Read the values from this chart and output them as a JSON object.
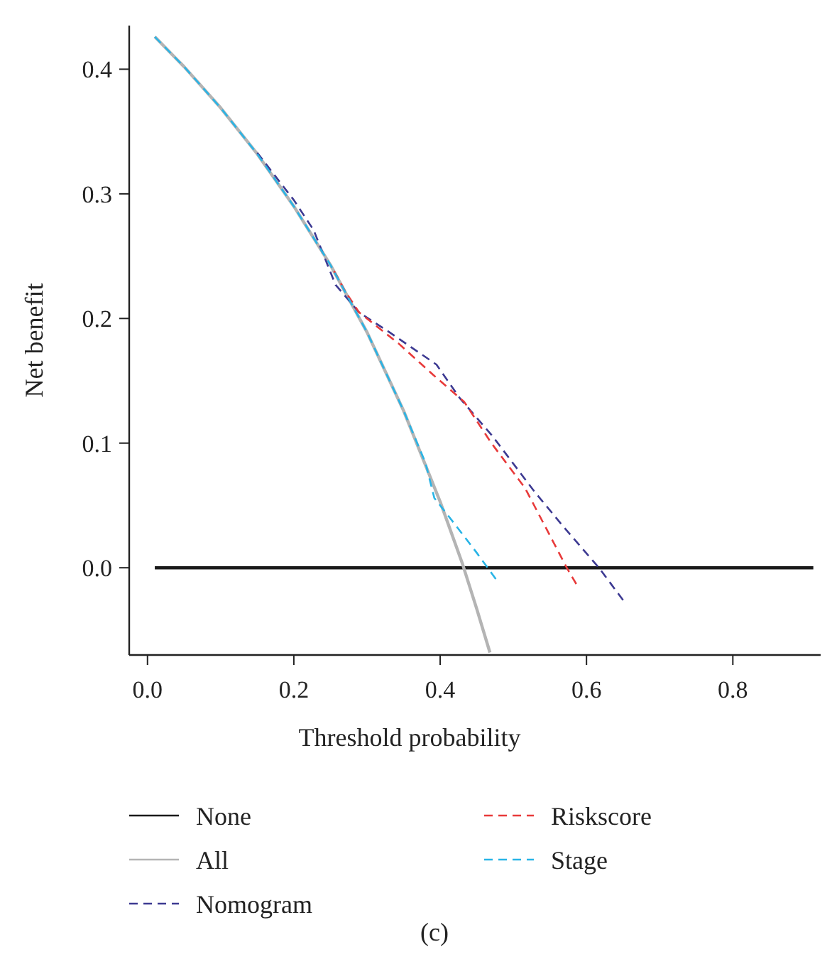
{
  "chart_data": {
    "type": "line",
    "xlabel": "Threshold probability",
    "ylabel": "Net benefit",
    "xlim": [
      -0.025,
      0.92
    ],
    "ylim": [
      -0.07,
      0.435
    ],
    "xticks": [
      {
        "value": 0,
        "label": "0.0"
      },
      0.2,
      0.4,
      0.6,
      0.8
    ],
    "yticks": [
      {
        "value": 0,
        "label": "0.0"
      },
      0.1,
      0.2,
      0.3,
      0.4
    ],
    "legend": "bottom",
    "grid": false,
    "annotations": [
      "(c)"
    ],
    "series": [
      {
        "name": "None",
        "color": "#1a1a1a",
        "line_style": "solid",
        "x": [
          0.01,
          0.91
        ],
        "values": [
          0,
          0
        ]
      },
      {
        "name": "All",
        "color": "#b4b4b4",
        "line_style": "solid",
        "x": [
          0.01,
          0.05,
          0.1,
          0.15,
          0.2,
          0.25,
          0.3,
          0.35,
          0.4,
          0.43,
          0.45,
          0.468
        ],
        "values": [
          0.426,
          0.402,
          0.369,
          0.332,
          0.29,
          0.243,
          0.189,
          0.126,
          0.053,
          0.004,
          -0.033,
          -0.068
        ]
      },
      {
        "name": "Nomogram",
        "color": "#3d3a92",
        "line_style": "dashed",
        "x": [
          0.15,
          0.2,
          0.227,
          0.257,
          0.289,
          0.328,
          0.395,
          0.427,
          0.471,
          0.529,
          0.567,
          0.617,
          0.65
        ],
        "values": [
          0.333,
          0.295,
          0.271,
          0.227,
          0.205,
          0.19,
          0.163,
          0.136,
          0.106,
          0.061,
          0.034,
          0,
          -0.026
        ]
      },
      {
        "name": "Riskscore",
        "color": "#e83a3a",
        "line_style": "dashed",
        "x": [
          0.255,
          0.27,
          0.289,
          0.343,
          0.39,
          0.433,
          0.47,
          0.516,
          0.573,
          0.586
        ],
        "values": [
          0.238,
          0.222,
          0.205,
          0.18,
          0.155,
          0.133,
          0.1,
          0.064,
          0,
          -0.013
        ]
      },
      {
        "name": "Stage",
        "color": "#29b4e6",
        "line_style": "dashed",
        "x": [
          0.01,
          0.05,
          0.1,
          0.15,
          0.2,
          0.25,
          0.3,
          0.35,
          0.38,
          0.392,
          0.42,
          0.45,
          0.476
        ],
        "values": [
          0.426,
          0.402,
          0.369,
          0.332,
          0.29,
          0.243,
          0.189,
          0.126,
          0.084,
          0.056,
          0.035,
          0.012,
          -0.009
        ]
      }
    ]
  }
}
